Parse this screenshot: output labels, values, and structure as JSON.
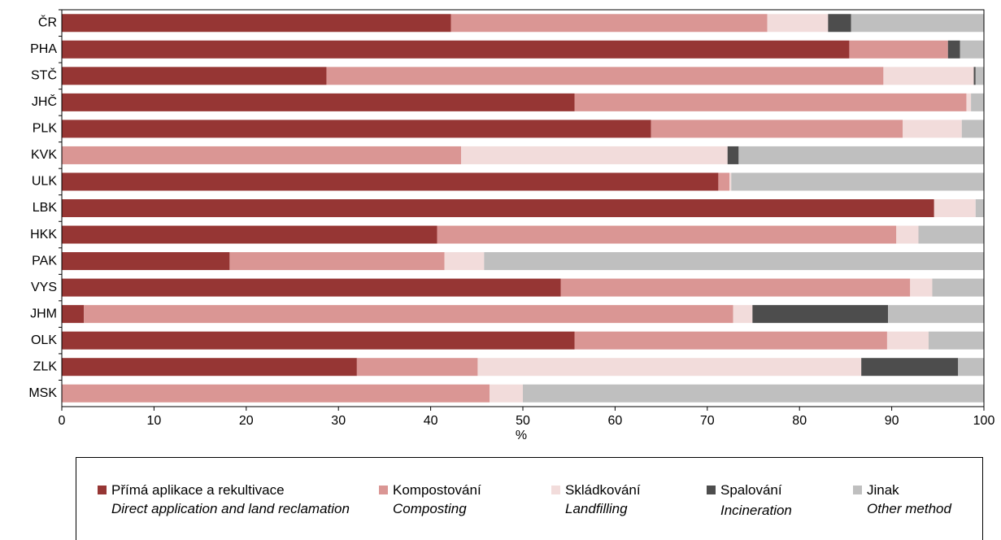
{
  "chart_data": {
    "type": "stacked-barh",
    "categories": [
      "ČR",
      "PHA",
      "STČ",
      "JHČ",
      "PLK",
      "KVK",
      "ULK",
      "LBK",
      "HKK",
      "PAK",
      "VYS",
      "JHM",
      "OLK",
      "ZLK",
      "MSK"
    ],
    "series": [
      {
        "name": "Přímá aplikace a rekultivace",
        "name_en": "Direct application and land reclamation",
        "color": "#963634",
        "values": [
          42.2,
          85.4,
          28.7,
          55.6,
          63.9,
          0,
          71.2,
          94.6,
          40.7,
          18.2,
          54.1,
          2.4,
          55.6,
          32.0,
          0
        ]
      },
      {
        "name": "Kompostování",
        "name_en": "Composting",
        "color": "#da9694",
        "values": [
          34.3,
          10.7,
          60.4,
          42.5,
          27.3,
          43.3,
          1.2,
          0,
          49.8,
          23.3,
          37.9,
          70.4,
          33.9,
          13.1,
          46.4
        ]
      },
      {
        "name": "Skládkování",
        "name_en": "Landfilling",
        "color": "#f2dcdb",
        "values": [
          6.6,
          0,
          9.8,
          0.5,
          6.4,
          28.9,
          0.2,
          4.5,
          2.4,
          4.3,
          2.4,
          2.1,
          4.5,
          41.6,
          3.6
        ]
      },
      {
        "name": "Spalování",
        "name_en": "Incineration",
        "color": "#4d4d4d",
        "values": [
          2.5,
          1.3,
          0.2,
          0,
          0,
          1.2,
          0,
          0,
          0,
          0,
          0,
          14.7,
          0,
          10.5,
          0
        ]
      },
      {
        "name": "Jinak",
        "name_en": "Other method",
        "color": "#bfbfbf",
        "values": [
          14.4,
          2.6,
          0.9,
          1.4,
          2.4,
          26.6,
          27.4,
          0.9,
          7.1,
          54.2,
          5.6,
          10.4,
          6.0,
          2.8,
          50.0
        ]
      }
    ],
    "xlabel": "%",
    "xlim": [
      0,
      100
    ],
    "xticks": [
      0,
      10,
      20,
      30,
      40,
      50,
      60,
      70,
      80,
      90,
      100
    ]
  }
}
